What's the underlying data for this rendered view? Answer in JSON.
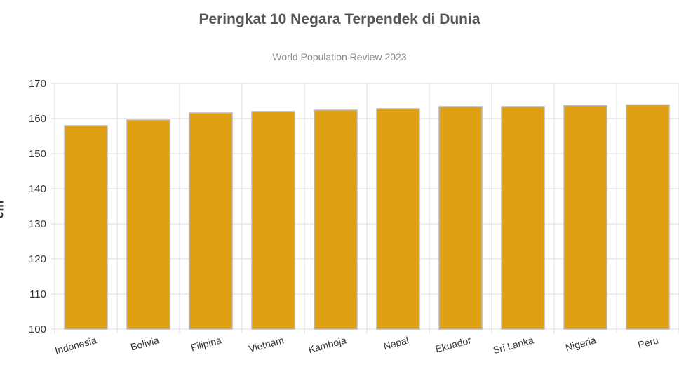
{
  "chart_data": {
    "type": "bar",
    "title": "Peringkat 10 Negara Terpendek di Dunia",
    "subtitle": "World Population Review 2023",
    "ylabel": "cm",
    "xlabel": "",
    "categories": [
      "Indonesia",
      "Bolivia",
      "Filipina",
      "Vietnam",
      "Kamboja",
      "Nepal",
      "Ekuador",
      "Sri Lanka",
      "Nigeria",
      "Peru"
    ],
    "values": [
      158.0,
      159.6,
      161.6,
      162.0,
      162.4,
      162.8,
      163.4,
      163.4,
      163.7,
      163.9
    ],
    "ylim": [
      100,
      170
    ],
    "yticks": [
      100,
      110,
      120,
      130,
      140,
      150,
      160,
      170
    ],
    "grid": true,
    "bar_color": "#e0a013",
    "bar_border_color": "#b8b8b8"
  }
}
